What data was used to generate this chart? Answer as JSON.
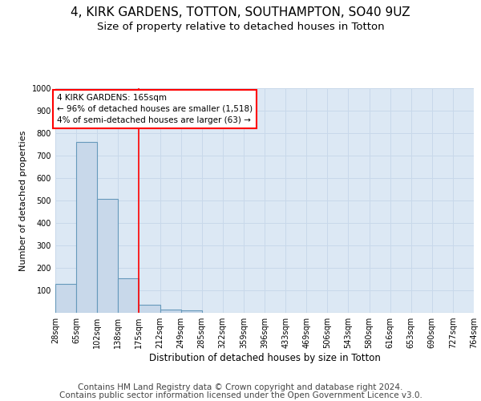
{
  "title": "4, KIRK GARDENS, TOTTON, SOUTHAMPTON, SO40 9UZ",
  "subtitle": "Size of property relative to detached houses in Totton",
  "xlabel": "Distribution of detached houses by size in Totton",
  "ylabel": "Number of detached properties",
  "footer_line1": "Contains HM Land Registry data © Crown copyright and database right 2024.",
  "footer_line2": "Contains public sector information licensed under the Open Government Licence v3.0.",
  "bin_labels": [
    "28sqm",
    "65sqm",
    "102sqm",
    "138sqm",
    "175sqm",
    "212sqm",
    "249sqm",
    "285sqm",
    "322sqm",
    "359sqm",
    "396sqm",
    "433sqm",
    "469sqm",
    "506sqm",
    "543sqm",
    "580sqm",
    "616sqm",
    "653sqm",
    "690sqm",
    "727sqm",
    "764sqm"
  ],
  "bar_heights": [
    127,
    759,
    507,
    152,
    37,
    13,
    10,
    0,
    0,
    0,
    0,
    0,
    0,
    0,
    0,
    0,
    0,
    0,
    0,
    0
  ],
  "bar_color": "#c8d8ea",
  "bar_edge_color": "#6699bb",
  "vline_x_index": 4,
  "vline_color": "red",
  "annotation_line1": "4 KIRK GARDENS: 165sqm",
  "annotation_line2": "← 96% of detached houses are smaller (1,518)",
  "annotation_line3": "4% of semi-detached houses are larger (63) →",
  "annotation_box_color": "white",
  "annotation_box_edge": "red",
  "ylim": [
    0,
    1000
  ],
  "yticks": [
    100,
    200,
    300,
    400,
    500,
    600,
    700,
    800,
    900,
    1000
  ],
  "grid_color": "#c8d8ea",
  "background_color": "#dce8f4",
  "fig_background": "white",
  "title_fontsize": 11,
  "subtitle_fontsize": 9.5,
  "axis_fontsize": 8,
  "tick_fontsize": 7,
  "footer_fontsize": 7.5
}
